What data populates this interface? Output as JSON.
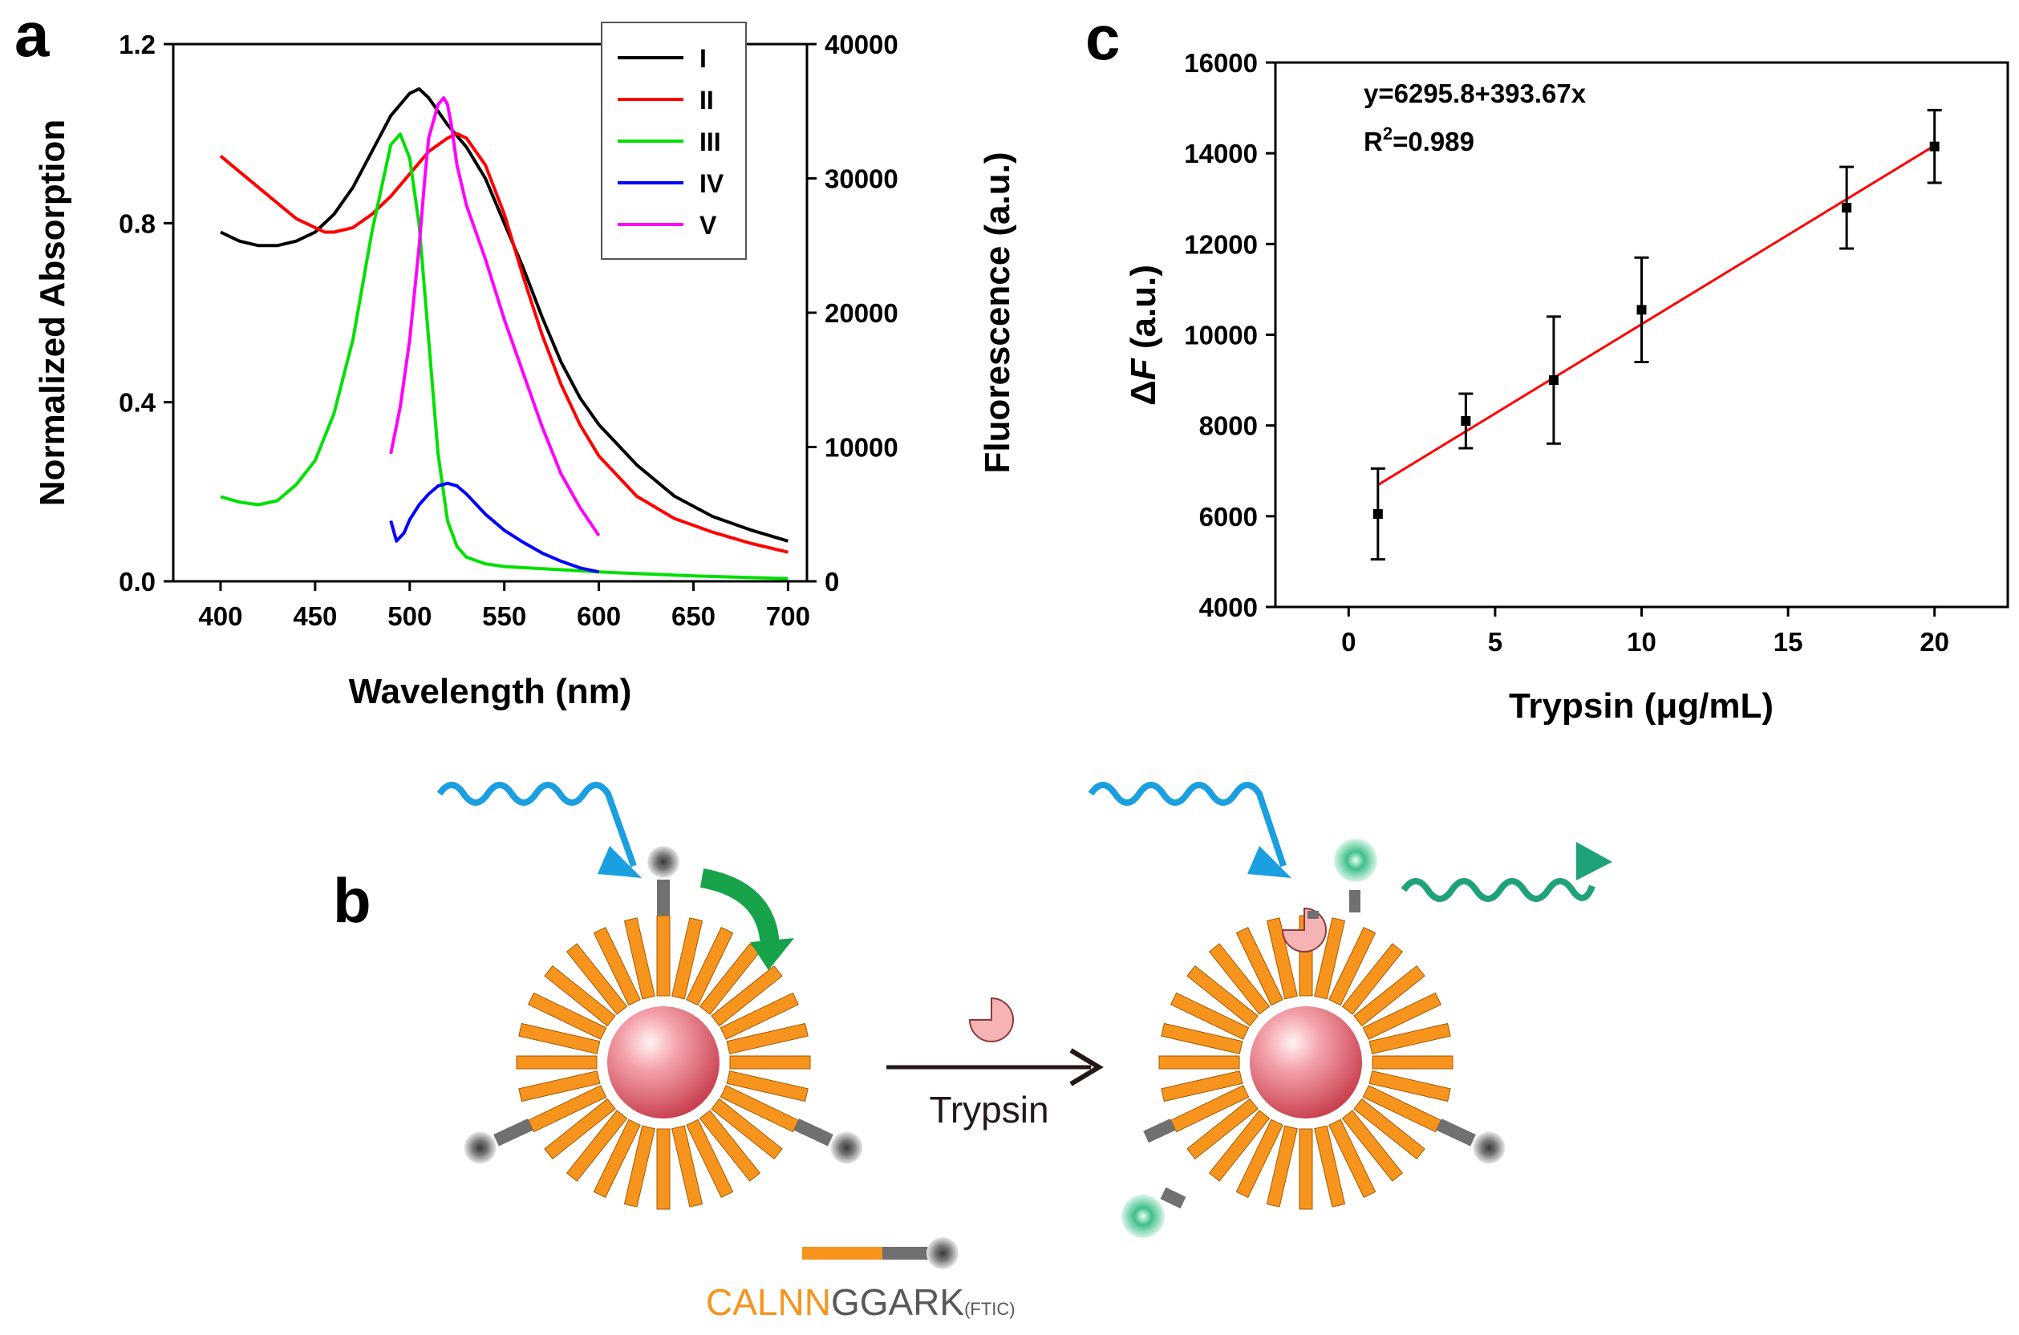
{
  "panel_labels": {
    "a": "a",
    "b": "b",
    "c": "c"
  },
  "chart_data": [
    {
      "panel": "a",
      "type": "line",
      "xlabel": "Wavelength (nm)",
      "ylabel": "Normalized Absorption",
      "y2label": "Fluorescence (a.u.)",
      "xlim": [
        375,
        710
      ],
      "ylim": [
        0,
        1.2
      ],
      "y2lim": [
        0,
        40000
      ],
      "xticks": [
        400,
        450,
        500,
        550,
        600,
        650,
        700
      ],
      "yticks": [
        "0.0",
        "0.4",
        "0.8",
        "1.2"
      ],
      "y2ticks": [
        "0",
        "10000",
        "20000",
        "30000",
        "40000"
      ],
      "series": [
        {
          "name": "I",
          "axis": "left",
          "color": "#000000",
          "x": [
            400,
            410,
            420,
            430,
            440,
            450,
            460,
            470,
            480,
            490,
            500,
            505,
            510,
            520,
            530,
            540,
            550,
            560,
            570,
            580,
            590,
            600,
            620,
            640,
            660,
            680,
            700
          ],
          "y": [
            0.78,
            0.76,
            0.75,
            0.75,
            0.76,
            0.78,
            0.82,
            0.88,
            0.96,
            1.04,
            1.09,
            1.1,
            1.08,
            1.02,
            0.97,
            0.9,
            0.8,
            0.7,
            0.59,
            0.49,
            0.41,
            0.35,
            0.26,
            0.19,
            0.145,
            0.115,
            0.09
          ]
        },
        {
          "name": "II",
          "axis": "left",
          "color": "#ff0000",
          "x": [
            400,
            420,
            440,
            455,
            460,
            470,
            480,
            490,
            500,
            510,
            520,
            525,
            530,
            540,
            550,
            560,
            570,
            580,
            590,
            600,
            620,
            640,
            660,
            680,
            700
          ],
          "y": [
            0.95,
            0.88,
            0.81,
            0.78,
            0.78,
            0.79,
            0.82,
            0.86,
            0.91,
            0.96,
            0.99,
            1.0,
            0.99,
            0.93,
            0.82,
            0.68,
            0.55,
            0.44,
            0.35,
            0.28,
            0.19,
            0.14,
            0.11,
            0.085,
            0.065
          ]
        },
        {
          "name": "III",
          "axis": "right",
          "color": "#00e000",
          "x": [
            400,
            410,
            420,
            430,
            440,
            450,
            460,
            470,
            480,
            490,
            495,
            500,
            505,
            510,
            515,
            520,
            525,
            530,
            540,
            550,
            575,
            600,
            650,
            700
          ],
          "y": [
            6300,
            5900,
            5700,
            6000,
            7200,
            9000,
            12500,
            18000,
            26000,
            32500,
            33300,
            31500,
            26500,
            18000,
            9500,
            4500,
            2600,
            1800,
            1300,
            1100,
            900,
            700,
            400,
            200
          ]
        },
        {
          "name": "IV",
          "axis": "right",
          "color": "#0000ff",
          "x": [
            490,
            493,
            497,
            500,
            505,
            510,
            515,
            520,
            525,
            530,
            540,
            550,
            560,
            570,
            580,
            590,
            600
          ],
          "y": [
            4500,
            3000,
            3600,
            4600,
            5700,
            6500,
            7100,
            7300,
            7100,
            6500,
            5000,
            3800,
            2900,
            2100,
            1500,
            1000,
            700
          ]
        },
        {
          "name": "V",
          "axis": "right",
          "color": "#ff00ff",
          "x": [
            490,
            495,
            500,
            505,
            508,
            510,
            512,
            515,
            518,
            520,
            522,
            525,
            530,
            535,
            540,
            550,
            560,
            570,
            580,
            590,
            600
          ],
          "y": [
            9500,
            13000,
            18000,
            25000,
            30000,
            33000,
            34000,
            35500,
            36000,
            35500,
            34000,
            31000,
            28000,
            26000,
            24000,
            19500,
            15500,
            11500,
            8000,
            5500,
            3400
          ]
        }
      ],
      "legend": [
        "I",
        "II",
        "III",
        "IV",
        "V"
      ]
    },
    {
      "panel": "c",
      "type": "scatter",
      "xlabel": "Trypsin (μg/mL)",
      "ylabel_prefix": "Δ",
      "ylabel_var": "F",
      "ylabel_unit": " (a.u.)",
      "xlim": [
        -2.5,
        22.5
      ],
      "ylim": [
        4000,
        16000
      ],
      "xticks": [
        "0",
        "5",
        "10",
        "15",
        "20"
      ],
      "yticks": [
        "4000",
        "6000",
        "8000",
        "10000",
        "12000",
        "14000",
        "16000"
      ],
      "points": [
        {
          "x": 1,
          "y": 6050,
          "err": 1000
        },
        {
          "x": 4,
          "y": 8100,
          "err": 600
        },
        {
          "x": 7,
          "y": 9000,
          "err": 1400
        },
        {
          "x": 10,
          "y": 10550,
          "err": 1150
        },
        {
          "x": 17,
          "y": 12800,
          "err": 900
        },
        {
          "x": 20,
          "y": 14150,
          "err": 800
        }
      ],
      "fit": {
        "intercept": 6295.8,
        "slope": 393.67,
        "x_range": [
          1,
          20
        ],
        "color": "#ff0000"
      },
      "equation": "y=6295.8+393.67x",
      "r2_prefix": "R",
      "r2_sup": "2",
      "r2_suffix": "=0.989"
    }
  ],
  "scheme": {
    "arrow_label": "Trypsin",
    "peptide_part1": "CALNN",
    "peptide_part2": "GGARK",
    "peptide_sub": "(FTIC)",
    "colors": {
      "gold_rod": "#f7941d",
      "linker": "#707070",
      "quencher": "#8a8a8a",
      "fluor": "#3fbf8a",
      "excitation": "#1a9fe0",
      "emission": "#1fa27a",
      "transfer": "#17a34a",
      "enzyme": "#f6b3b3",
      "core": "#e07f8c"
    }
  }
}
